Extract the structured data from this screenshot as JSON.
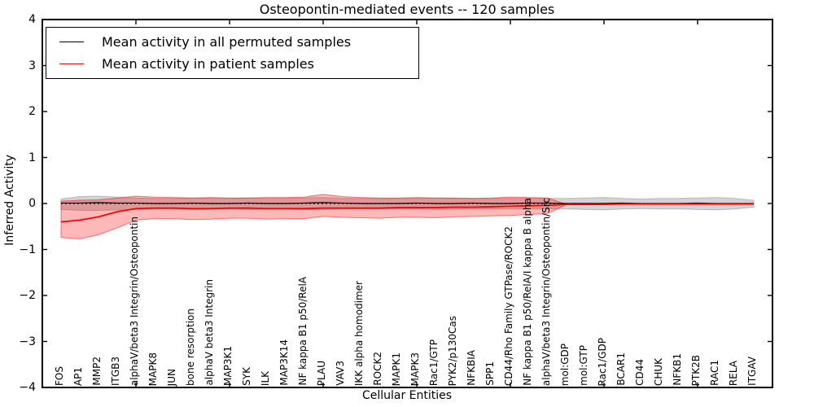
{
  "title": "Osteopontin-mediated events -- 120 samples",
  "legend": {
    "items": [
      {
        "label": "Mean activity in all permuted samples",
        "color": "#000000"
      },
      {
        "label": "Mean activity in patient samples",
        "color": "#ff0000"
      }
    ]
  },
  "axes": {
    "ylabel": "Inferred Activity",
    "xlabel": "Cellular Entities"
  },
  "chart_data": {
    "type": "line",
    "title": "Osteopontin-mediated events -- 120 samples",
    "xlabel": "Cellular Entities",
    "ylabel": "Inferred Activity",
    "ylim": [
      -4,
      4
    ],
    "grid": false,
    "legend_position": "upper left",
    "yticks_values": [
      4,
      3,
      2,
      1,
      0,
      -1,
      -2,
      -3,
      -4
    ],
    "yticks_labels": [
      "4",
      "3",
      "2",
      "1",
      "0",
      "−1",
      "−2",
      "−3",
      "−4"
    ],
    "xtick_positions": [
      5,
      10,
      15,
      20,
      25,
      30,
      35
    ],
    "categories": [
      "FOS",
      "AP1",
      "MMP2",
      "ITGB3",
      "alphaV/beta3 Integrin/Osteopontin",
      "MAPK8",
      "JUN",
      "bone resorption",
      "alphaV beta3 Integrin",
      "MAP3K1",
      "SYK",
      "ILK",
      "MAP3K14",
      "NF kappa B1 p50/RelA",
      "PLAU",
      "VAV3",
      "IKK alpha homodimer",
      "ROCK2",
      "MAPK1",
      "MAPK3",
      "Rac1/GTP",
      "PYK2/p130Cas",
      "NFKBIA",
      "SPP1",
      "CD44/Rho Family GTPase/ROCK2",
      "NF kappa B1 p50/RelA/I kappa B alpha",
      "alphaV/beta3 Integrin/Osteopontin/Src",
      "mol:GDP",
      "mol:GTP",
      "Rac1/GDP",
      "BCAR1",
      "CD44",
      "CHUK",
      "NFKB1",
      "PTK2B",
      "RAC1",
      "RELA",
      "ITGAV"
    ],
    "series": [
      {
        "name": "mean-activity-permuted",
        "label": "Mean activity in all permuted samples",
        "color": "#000000",
        "width": 1.2,
        "values": [
          0.01,
          0.01,
          0.02,
          0.01,
          0.01,
          0.0,
          0.0,
          0.01,
          0.0,
          0.0,
          0.01,
          0.0,
          0.0,
          0.01,
          0.02,
          0.01,
          0.0,
          0.0,
          0.0,
          0.01,
          0.0,
          0.0,
          0.01,
          0.0,
          0.0,
          0.01,
          0.01,
          0.0,
          0.0,
          0.0,
          0.01,
          0.0,
          0.0,
          0.0,
          0.01,
          0.0,
          0.0,
          0.0
        ]
      },
      {
        "name": "mean-activity-patient",
        "label": "Mean activity in patient samples",
        "color": "#ff0000",
        "width": 1.8,
        "values": [
          -0.4,
          -0.36,
          -0.29,
          -0.18,
          -0.11,
          -0.1,
          -0.1,
          -0.11,
          -0.11,
          -0.1,
          -0.1,
          -0.11,
          -0.11,
          -0.11,
          -0.1,
          -0.1,
          -0.1,
          -0.1,
          -0.09,
          -0.09,
          -0.09,
          -0.08,
          -0.08,
          -0.07,
          -0.06,
          -0.05,
          -0.04,
          -0.02,
          -0.02,
          -0.02,
          -0.01,
          -0.01,
          -0.01,
          -0.01,
          -0.01,
          -0.01,
          -0.01,
          -0.01
        ]
      }
    ],
    "bands": [
      {
        "name": "permuted-samples",
        "color": "#808080",
        "fill_alpha": 0.35,
        "edge_alpha": 0.45,
        "upper": [
          0.1,
          0.15,
          0.16,
          0.14,
          0.12,
          0.11,
          0.11,
          0.12,
          0.11,
          0.11,
          0.12,
          0.11,
          0.11,
          0.12,
          0.13,
          0.11,
          0.11,
          0.11,
          0.11,
          0.11,
          0.12,
          0.11,
          0.11,
          0.11,
          0.11,
          0.11,
          0.11,
          0.11,
          0.12,
          0.13,
          0.11,
          0.1,
          0.11,
          0.11,
          0.12,
          0.13,
          0.11,
          0.07
        ],
        "lower": [
          -0.13,
          -0.15,
          -0.15,
          -0.14,
          -0.13,
          -0.12,
          -0.12,
          -0.13,
          -0.12,
          -0.12,
          -0.13,
          -0.12,
          -0.12,
          -0.13,
          -0.13,
          -0.12,
          -0.12,
          -0.12,
          -0.12,
          -0.12,
          -0.13,
          -0.12,
          -0.12,
          -0.12,
          -0.12,
          -0.12,
          -0.12,
          -0.12,
          -0.13,
          -0.14,
          -0.12,
          -0.11,
          -0.12,
          -0.12,
          -0.13,
          -0.14,
          -0.12,
          -0.08
        ]
      },
      {
        "name": "patient-samples",
        "color": "#ff0000",
        "fill_alpha": 0.28,
        "edge_alpha": 0.5,
        "upper": [
          0.05,
          0.07,
          0.08,
          0.12,
          0.16,
          0.14,
          0.13,
          0.12,
          0.13,
          0.12,
          0.12,
          0.13,
          0.13,
          0.14,
          0.2,
          0.15,
          0.13,
          0.12,
          0.12,
          0.13,
          0.12,
          0.12,
          0.11,
          0.12,
          0.14,
          0.13,
          0.12,
          -0.02
        ],
        "lower": [
          -0.74,
          -0.77,
          -0.68,
          -0.53,
          -0.36,
          -0.33,
          -0.33,
          -0.35,
          -0.34,
          -0.32,
          -0.32,
          -0.34,
          -0.33,
          -0.33,
          -0.28,
          -0.3,
          -0.31,
          -0.32,
          -0.3,
          -0.3,
          -0.31,
          -0.29,
          -0.28,
          -0.27,
          -0.26,
          -0.24,
          -0.22,
          -0.02
        ]
      }
    ],
    "zero_line": 0
  }
}
